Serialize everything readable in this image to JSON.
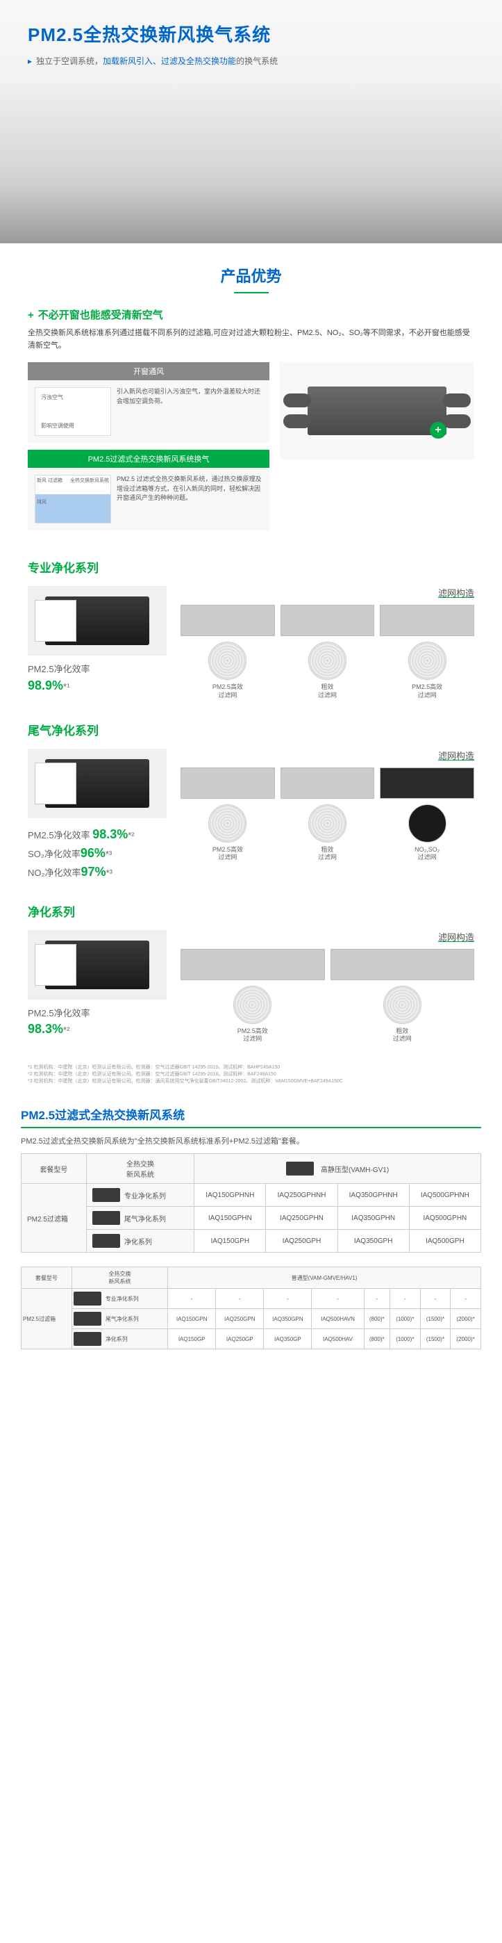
{
  "hero": {
    "title": "PM2.5全热交换新风换气系统",
    "subtitle_prefix": "独立于空调系统，",
    "subtitle_blue": "加载新风引入、过滤及全热交换功能",
    "subtitle_suffix": "的换气系统"
  },
  "advantage": {
    "section_title": "产品优势",
    "heading": "不必开窗也能感受清新空气",
    "desc": "全热交换新风系统标准系列通过搭载不同系列的过滤箱,可应对过滤大颗粒粉尘、PM2.5、NO₂、SO₂等不同需求，不必开窗也能感受清新空气。",
    "comp1_header": "开窗通风",
    "comp1_label1": "污浊空气",
    "comp1_label2": "影响空调使用",
    "comp1_text": "引入新风也可能引入污浊空气，室内外温差较大时还会增加空调负荷。",
    "comp2_header": "PM2.5过滤式全热交换新风系统换气",
    "comp2_label1": "新风 过滤箱",
    "comp2_label2": "全热交换新风系统",
    "comp2_label3": "排风",
    "comp2_label4": "送风",
    "comp2_label5": "回风",
    "comp2_text": "PM2.5 过滤式全热交换新风系统，通过热交换原理及增设过滤箱等方式，在引入新风的同时，轻松解决因开窗通风产生的种种问题。"
  },
  "series": [
    {
      "title": "专业净化系列",
      "efficiency_lines": [
        "PM2.5净化效率",
        "98.9%*¹"
      ],
      "filters": [
        {
          "label": "PM2.5高效\n过滤网",
          "dark": false
        },
        {
          "label": "粗效\n过滤网",
          "dark": false
        },
        {
          "label": "PM2.5高效\n过滤网",
          "dark": false
        }
      ]
    },
    {
      "title": "尾气净化系列",
      "efficiency_lines": [
        "PM2.5净化效率 98.3%*²",
        "SO₂净化效率96%*³",
        "NO₂净化效率97%*³"
      ],
      "filters": [
        {
          "label": "PM2.5高效\n过滤网",
          "dark": false
        },
        {
          "label": "粗效\n过滤网",
          "dark": false
        },
        {
          "label": "NO₂,SO₂\n过滤网",
          "dark": true
        }
      ]
    },
    {
      "title": "净化系列",
      "efficiency_lines": [
        "PM2.5净化效率",
        "98.3%*²"
      ],
      "filters": [
        {
          "label": "PM2.5高效\n过滤网",
          "dark": false
        },
        {
          "label": "粗效\n过滤网",
          "dark": false
        }
      ]
    }
  ],
  "filter_struct_label": "滤网构造",
  "footnote": "*1 检测机构：中建院（北京）检测认证有限公司。检测器：空气过滤器GB/T 14295-2019。测试机种：BAHP249A150\n*2 检测机构：中建院（北京）检测认证有限公司。检测器：空气过滤器GB/T 14295-2019。测试机种：BAF249A150\n*3 检测机构：中建院（北京）检测认证有限公司。检测器：通风系统用空气净化装置GB/T34012-2002。测试机种：VAM150GMVE+BAF249A150C",
  "table": {
    "title": "PM2.5过滤式全热交换新风系统",
    "desc": "PM2.5过滤式全热交换新风系统为\"全热交换新风系统标准系列+PM2.5过滤箱\"套餐。",
    "header_col1": "套餐型号",
    "header_col2": "全热交换\n新风系统",
    "header_col3": "高静压型(VAMH-GV1)",
    "row_label": "PM2.5过滤箱",
    "rows": [
      {
        "name": "专业净化系列",
        "cells": [
          "IAQ150GPHNH",
          "IAQ250GPHNH",
          "IAQ350GPHNH",
          "IAQ500GPHNH"
        ]
      },
      {
        "name": "尾气净化系列",
        "cells": [
          "IAQ150GPHN",
          "IAQ250GPHN",
          "IAQ350GPHN",
          "IAQ500GPHN"
        ]
      },
      {
        "name": "净化系列",
        "cells": [
          "IAQ150GPH",
          "IAQ250GPH",
          "IAQ350GPH",
          "IAQ500GPH"
        ]
      }
    ],
    "table2_header": "普通型(VAM-GMVE/HAV1)",
    "table2_rows": [
      {
        "name": "专业净化系列",
        "cells": [
          "-",
          "-",
          "-",
          "-",
          "-",
          "-",
          "-",
          "-"
        ]
      },
      {
        "name": "尾气净化系列",
        "cells": [
          "IAQ150GPN",
          "IAQ250GPN",
          "IAQ350GPN",
          "IAQ500HAVN",
          "(800)*",
          "(1000)*",
          "(1500)*",
          "(2000)*"
        ]
      },
      {
        "name": "净化系列",
        "cells": [
          "IAQ150GP",
          "IAQ250GP",
          "IAQ350GP",
          "IAQ500HAV",
          "(800)*",
          "(1000)*",
          "(1500)*",
          "(2000)*"
        ]
      }
    ]
  }
}
